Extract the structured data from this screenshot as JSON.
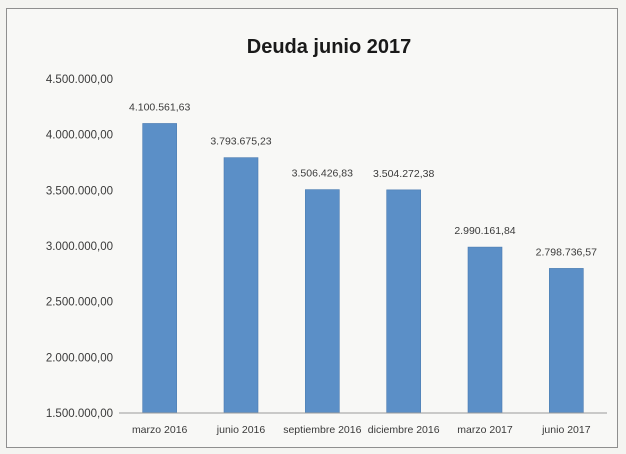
{
  "chart_data": {
    "type": "bar",
    "title": "Deuda junio 2017",
    "xlabel": "",
    "ylabel": "",
    "categories": [
      "marzo 2016",
      "junio 2016",
      "septiembre 2016",
      "diciembre 2016",
      "marzo 2017",
      "junio 2017"
    ],
    "values": [
      4100561.63,
      3793675.23,
      3506426.83,
      3504272.38,
      2990161.84,
      2798736.57
    ],
    "data_labels": [
      "4.100.561,63",
      "3.793.675,23",
      "3.506.426,83",
      "3.504.272,38",
      "2.990.161,84",
      "2.798.736,57"
    ],
    "ylim": [
      1500000,
      4500000
    ],
    "yticks": [
      1500000,
      2000000,
      2500000,
      3000000,
      3500000,
      4000000,
      4500000
    ],
    "ytick_labels": [
      "1.500.000,00",
      "2.000.000,00",
      "2.500.000,00",
      "3.000.000,00",
      "3.500.000,00",
      "4.000.000,00",
      "4.500.000,00"
    ],
    "grid": false,
    "legend": "none",
    "colors": {
      "bar": "#5b8fc7",
      "bar_edge": "#4a7bb0",
      "axis": "#9a9a9a",
      "text": "#3a3a3a"
    }
  }
}
